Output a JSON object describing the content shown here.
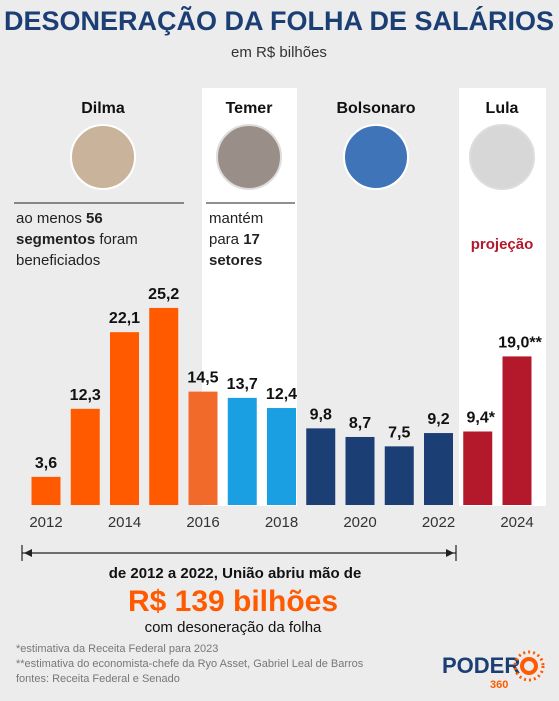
{
  "chart_data": {
    "type": "bar",
    "title": "DESONERAÇÃO DA FOLHA DE SALÁRIOS",
    "subtitle": "em R$ bilhões",
    "categories": [
      "2012",
      null,
      "2014",
      null,
      "2016",
      null,
      "2018",
      null,
      "2020",
      null,
      "2022",
      null,
      "2024"
    ],
    "values": [
      3.6,
      12.3,
      22.1,
      25.2,
      14.5,
      13.7,
      12.4,
      9.8,
      8.7,
      7.5,
      9.2,
      9.4,
      19.0
    ],
    "value_labels": [
      "3,6",
      "12,3",
      "22,1",
      "25,2",
      "14,5",
      "13,7",
      "12,4",
      "9,8",
      "8,7",
      "7,5",
      "9,2",
      "9,4*",
      "19,0**"
    ],
    "colors": [
      "#ff5a00",
      "#ff5a00",
      "#ff5a00",
      "#ff5a00",
      "#f26a2a",
      "#1a9fe2",
      "#1a9fe2",
      "#1b3f74",
      "#1b3f74",
      "#1b3f74",
      "#1b3f74",
      "#b3182b",
      "#b3182b"
    ],
    "presidents": [
      {
        "name": "Dilma",
        "note": [
          "ao menos ",
          "56",
          "segmentos",
          " foram",
          "beneficiados"
        ]
      },
      {
        "name": "Temer",
        "note": [
          "mantém",
          "para ",
          "17",
          "setores"
        ]
      },
      {
        "name": "Bolsonaro"
      },
      {
        "name": "Lula",
        "note": [
          "projeção"
        ]
      }
    ],
    "summary": {
      "line1": "de 2012 a 2022, União abriu mão de",
      "highlight": "R$ 139 bilhões",
      "line2": "com desoneração da folha"
    },
    "footnotes": [
      "*estimativa da Receita Federal para 2023",
      "**estimativa do economista-chefe da Ryo Asset, Gabriel Leal de Barros",
      "fontes: Receita Federal e Senado"
    ],
    "logo": {
      "name": "PODER",
      "number": "360"
    }
  }
}
